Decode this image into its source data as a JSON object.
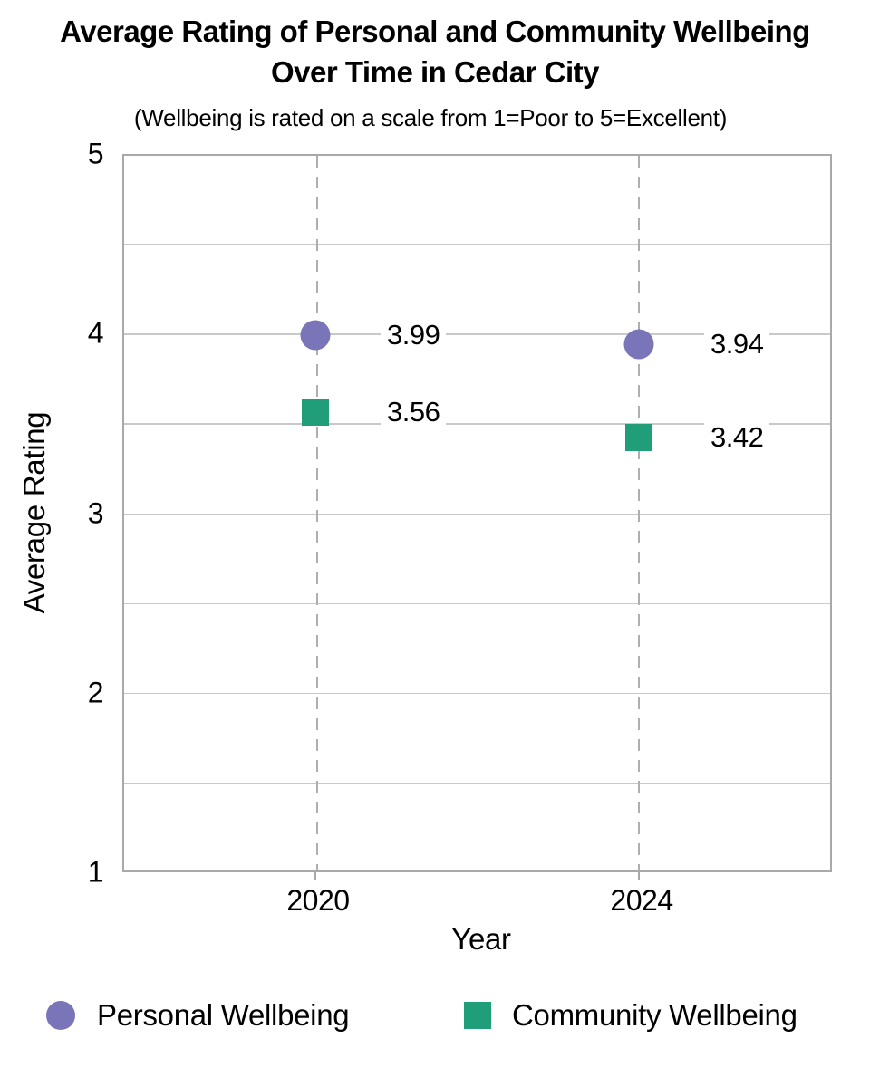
{
  "chart_data": {
    "type": "scatter",
    "title": "Average Rating of Personal and Community Wellbeing Over Time in Cedar City",
    "title_lines": [
      "Average Rating of Personal and Community Wellbeing",
      "Over Time in Cedar City"
    ],
    "subtitle": "(Wellbeing is rated on a scale from 1=Poor to 5=Excellent)",
    "xlabel": "Year",
    "ylabel": "Average Rating",
    "ylim": [
      1,
      5
    ],
    "y_major_ticks": [
      5,
      4,
      3,
      2,
      1
    ],
    "y_gridline_step": 0.5,
    "grid_on": true,
    "x_gridline_style": "dashed",
    "categories": [
      "2020",
      "2024"
    ],
    "series": [
      {
        "name": "Personal Wellbeing",
        "marker": "circle",
        "color": "#7A74B8",
        "values": [
          3.99,
          3.94
        ],
        "data_labels": [
          "3.99",
          "3.94"
        ]
      },
      {
        "name": "Community Wellbeing",
        "marker": "square",
        "color": "#209E79",
        "values": [
          3.56,
          3.42
        ],
        "data_labels": [
          "3.56",
          "3.42"
        ]
      }
    ],
    "legend_position": "bottom",
    "colors": {
      "gridline": "#C9C9C9",
      "axis_border": "#A9A9A9",
      "dashed_line": "#AFAFAF",
      "text": "#000000",
      "background": "#FFFFFF"
    }
  }
}
